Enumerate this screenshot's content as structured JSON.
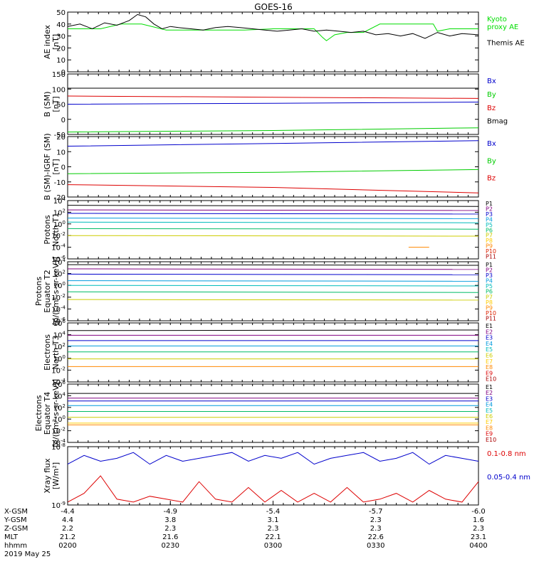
{
  "title": "GOES-16",
  "chart_data": [
    {
      "type": "line",
      "ylabel": "AE index\n[nT]",
      "ylim": [
        0,
        50
      ],
      "yticks": [
        "0",
        "10",
        "20",
        "30",
        "40",
        "50"
      ],
      "legend": [
        {
          "name": "Kyoto\nproxy AE",
          "color": "#00dd00"
        },
        {
          "name": "Themis AE",
          "color": "#000000"
        }
      ],
      "series": [
        {
          "name": "Kyoto proxy AE",
          "color": "#00dd00",
          "x": [
            0,
            0.08,
            0.13,
            0.18,
            0.24,
            0.33,
            0.43,
            0.5,
            0.56,
            0.6,
            0.62,
            0.63,
            0.65,
            0.68,
            0.72,
            0.76,
            0.84,
            0.89,
            0.9,
            0.93,
            1
          ],
          "y": [
            36,
            36,
            40,
            40,
            35,
            35,
            35,
            36,
            36,
            36,
            29,
            26,
            31,
            33,
            33,
            40,
            40,
            40,
            34,
            36,
            36
          ]
        },
        {
          "name": "Themis AE",
          "color": "#000000",
          "x": [
            0,
            0.03,
            0.06,
            0.09,
            0.12,
            0.15,
            0.17,
            0.19,
            0.21,
            0.23,
            0.25,
            0.27,
            0.3,
            0.33,
            0.36,
            0.39,
            0.42,
            0.45,
            0.48,
            0.51,
            0.54,
            0.57,
            0.6,
            0.63,
            0.66,
            0.69,
            0.72,
            0.75,
            0.78,
            0.81,
            0.84,
            0.87,
            0.9,
            0.93,
            0.96,
            1
          ],
          "y": [
            38,
            40,
            36,
            41,
            39,
            43,
            48,
            46,
            40,
            36,
            38,
            37,
            36,
            35,
            37,
            38,
            37,
            36,
            35,
            34,
            35,
            36,
            34,
            35,
            34,
            33,
            34,
            31,
            32,
            30,
            32,
            28,
            33,
            30,
            32,
            31
          ]
        }
      ]
    },
    {
      "type": "line",
      "ylabel": "B (SM)\n[nT]",
      "ylim": [
        -50,
        150
      ],
      "yticks": [
        "-50",
        "0",
        "50",
        "100",
        "150"
      ],
      "legend": [
        {
          "name": "Bx",
          "color": "#0000cc"
        },
        {
          "name": "By",
          "color": "#00cc00"
        },
        {
          "name": "Bz",
          "color": "#dd0000"
        },
        {
          "name": "Bmag",
          "color": "#000000"
        }
      ],
      "series": [
        {
          "name": "Bx",
          "color": "#0000cc",
          "x": [
            0,
            0.5,
            1
          ],
          "y": [
            50,
            53,
            57
          ]
        },
        {
          "name": "By",
          "color": "#00cc00",
          "x": [
            0,
            0.5,
            1
          ],
          "y": [
            -42,
            -37,
            -28
          ]
        },
        {
          "name": "Bz",
          "color": "#dd0000",
          "x": [
            0,
            0.5,
            1
          ],
          "y": [
            77,
            73,
            69
          ]
        },
        {
          "name": "Bmag",
          "color": "#000000",
          "x": [
            0,
            1
          ],
          "y": [
            103,
            103
          ]
        }
      ]
    },
    {
      "type": "line",
      "ylabel": "B (SM)-IGRF (SM)\n[nT]",
      "ylim": [
        -22,
        22
      ],
      "yticks": [
        "-20",
        "-10",
        "0",
        "10",
        "20"
      ],
      "legend": [
        {
          "name": "Bx",
          "color": "#0000cc"
        },
        {
          "name": "By",
          "color": "#00cc00"
        },
        {
          "name": "Bz",
          "color": "#dd0000"
        }
      ],
      "series": [
        {
          "name": "Bx",
          "color": "#0000cc",
          "x": [
            0,
            0.5,
            1
          ],
          "y": [
            15,
            17,
            19
          ]
        },
        {
          "name": "By",
          "color": "#00cc00",
          "x": [
            0,
            0.5,
            1
          ],
          "y": [
            -5,
            -4,
            -2
          ]
        },
        {
          "name": "Bz",
          "color": "#dd0000",
          "x": [
            0,
            0.5,
            1
          ],
          "y": [
            -13,
            -15,
            -19
          ]
        }
      ]
    },
    {
      "type": "line",
      "log": true,
      "ylabel": "Protons\nNorth T1",
      "ylim": [
        -6,
        4
      ],
      "yticks": [
        "10^-6",
        "10^-4",
        "10^-2",
        "10^0",
        "10^2",
        "10^4"
      ],
      "legend": [
        {
          "name": "P1",
          "color": "#000000"
        },
        {
          "name": "P2",
          "color": "#800080"
        },
        {
          "name": "P3",
          "color": "#0000cc"
        },
        {
          "name": "P4",
          "color": "#0099dd"
        },
        {
          "name": "P5",
          "color": "#00bbbb"
        },
        {
          "name": "P6",
          "color": "#00bb66"
        },
        {
          "name": "P7",
          "color": "#cccc00"
        },
        {
          "name": "P8",
          "color": "#ffcc00"
        },
        {
          "name": "P9",
          "color": "#ff8800"
        },
        {
          "name": "P10",
          "color": "#dd2200"
        },
        {
          "name": "P11",
          "color": "#aa0000"
        }
      ],
      "series": [
        {
          "name": "P1",
          "color": "#000000",
          "x": [
            0,
            1
          ],
          "y": [
            3.2,
            3.0
          ]
        },
        {
          "name": "P2",
          "color": "#800080",
          "x": [
            0,
            1
          ],
          "y": [
            2.4,
            2.3
          ]
        },
        {
          "name": "P3",
          "color": "#0000cc",
          "x": [
            0,
            1
          ],
          "y": [
            1.8,
            1.7
          ]
        },
        {
          "name": "P4",
          "color": "#0099dd",
          "x": [
            0,
            1
          ],
          "y": [
            1.0,
            0.9
          ]
        },
        {
          "name": "P5",
          "color": "#00bbbb",
          "x": [
            0,
            1
          ],
          "y": [
            0.3,
            0.2
          ]
        },
        {
          "name": "P6",
          "color": "#00bb66",
          "x": [
            0,
            1
          ],
          "y": [
            -0.8,
            -0.9
          ]
        },
        {
          "name": "P7",
          "color": "#cccc00",
          "x": [
            0,
            1
          ],
          "y": [
            -2.0,
            -2.1
          ]
        },
        {
          "name": "P9",
          "color": "#ff8800",
          "x": [
            0.83,
            0.88
          ],
          "y": [
            -4.0,
            -4.0
          ]
        }
      ]
    },
    {
      "type": "line",
      "log": true,
      "ylabel": "Protons\nEquator T2\n[p/(cm²-s-sr-keV)]",
      "ylim": [
        -6,
        4
      ],
      "yticks": [
        "10^-6",
        "10^-4",
        "10^-2",
        "10^0",
        "10^2",
        "10^4"
      ],
      "legend": [
        {
          "name": "P1",
          "color": "#000000"
        },
        {
          "name": "P2",
          "color": "#800080"
        },
        {
          "name": "P3",
          "color": "#0000cc"
        },
        {
          "name": "P4",
          "color": "#0099dd"
        },
        {
          "name": "P5",
          "color": "#00bbbb"
        },
        {
          "name": "P6",
          "color": "#00bb66"
        },
        {
          "name": "P7",
          "color": "#cccc00"
        },
        {
          "name": "P8",
          "color": "#ffcc00"
        },
        {
          "name": "P9",
          "color": "#ff8800"
        },
        {
          "name": "P10",
          "color": "#dd2200"
        },
        {
          "name": "P11",
          "color": "#aa0000"
        }
      ],
      "series": [
        {
          "name": "P1",
          "color": "#000000",
          "x": [
            0,
            1
          ],
          "y": [
            3.5,
            3.4
          ]
        },
        {
          "name": "P2",
          "color": "#800080",
          "x": [
            0,
            1
          ],
          "y": [
            2.8,
            2.7
          ]
        },
        {
          "name": "P3",
          "color": "#0000cc",
          "x": [
            0,
            1
          ],
          "y": [
            1.9,
            1.8
          ]
        },
        {
          "name": "P4",
          "color": "#0099dd",
          "x": [
            0,
            1
          ],
          "y": [
            0.8,
            0.7
          ]
        },
        {
          "name": "P5",
          "color": "#00bbbb",
          "x": [
            0,
            1
          ],
          "y": [
            0.0,
            -0.1
          ]
        },
        {
          "name": "P6",
          "color": "#00bb66",
          "x": [
            0,
            1
          ],
          "y": [
            -1.1,
            -1.2
          ]
        },
        {
          "name": "P7",
          "color": "#cccc00",
          "x": [
            0,
            1
          ],
          "y": [
            -2.4,
            -2.5
          ]
        }
      ]
    },
    {
      "type": "line",
      "log": true,
      "ylabel": "Electrons\nNorth T3",
      "ylim": [
        -4,
        6
      ],
      "yticks": [
        "10^-4",
        "10^-2",
        "10^0",
        "10^2",
        "10^4",
        "10^6"
      ],
      "legend": [
        {
          "name": "E1",
          "color": "#000000"
        },
        {
          "name": "E2",
          "color": "#800080"
        },
        {
          "name": "E3",
          "color": "#0000cc"
        },
        {
          "name": "E4",
          "color": "#0099dd"
        },
        {
          "name": "E5",
          "color": "#00bbbb"
        },
        {
          "name": "E6",
          "color": "#cccc00"
        },
        {
          "name": "E7",
          "color": "#ffcc00"
        },
        {
          "name": "E8",
          "color": "#ff8800"
        },
        {
          "name": "E9",
          "color": "#dd0000"
        },
        {
          "name": "E10",
          "color": "#aa0000"
        }
      ],
      "series": [
        {
          "name": "E1",
          "color": "#000000",
          "x": [
            0,
            1
          ],
          "y": [
            4.7,
            4.8
          ]
        },
        {
          "name": "E2",
          "color": "#800080",
          "x": [
            0,
            1
          ],
          "y": [
            3.9,
            3.9
          ]
        },
        {
          "name": "E3",
          "color": "#0000cc",
          "x": [
            0,
            1
          ],
          "y": [
            3.0,
            3.0
          ]
        },
        {
          "name": "E4",
          "color": "#0099dd",
          "x": [
            0,
            1
          ],
          "y": [
            2.1,
            2.1
          ]
        },
        {
          "name": "E5",
          "color": "#00bb66",
          "x": [
            0,
            1
          ],
          "y": [
            1.1,
            1.1
          ]
        },
        {
          "name": "E6",
          "color": "#cccc00",
          "x": [
            0,
            1
          ],
          "y": [
            -0.1,
            -0.1
          ]
        },
        {
          "name": "E8",
          "color": "#ff8800",
          "x": [
            0,
            1
          ],
          "y": [
            -1.4,
            -1.4
          ]
        }
      ]
    },
    {
      "type": "line",
      "log": true,
      "ylabel": "Electrons\nEquator T4\n[e/(cm²-s-sr-keV)]",
      "ylim": [
        -4,
        6
      ],
      "yticks": [
        "10^-4",
        "10^-2",
        "10^0",
        "10^2",
        "10^4",
        "10^6"
      ],
      "legend": [
        {
          "name": "E1",
          "color": "#000000"
        },
        {
          "name": "E2",
          "color": "#800080"
        },
        {
          "name": "E3",
          "color": "#0000cc"
        },
        {
          "name": "E4",
          "color": "#0099dd"
        },
        {
          "name": "E5",
          "color": "#00bbbb"
        },
        {
          "name": "E6",
          "color": "#cccc00"
        },
        {
          "name": "E7",
          "color": "#ffcc00"
        },
        {
          "name": "E8",
          "color": "#ff8800"
        },
        {
          "name": "E9",
          "color": "#dd0000"
        },
        {
          "name": "E10",
          "color": "#aa0000"
        }
      ],
      "series": [
        {
          "name": "E1",
          "color": "#000000",
          "x": [
            0,
            1
          ],
          "y": [
            4.4,
            4.4
          ]
        },
        {
          "name": "E2",
          "color": "#800080",
          "x": [
            0,
            1
          ],
          "y": [
            3.6,
            3.6
          ]
        },
        {
          "name": "E3",
          "color": "#0000cc",
          "x": [
            0,
            1
          ],
          "y": [
            3.1,
            3.1
          ]
        },
        {
          "name": "E4",
          "color": "#0099dd",
          "x": [
            0,
            1
          ],
          "y": [
            2.3,
            2.3
          ]
        },
        {
          "name": "E5",
          "color": "#00bb66",
          "x": [
            0,
            1
          ],
          "y": [
            1.3,
            1.3
          ]
        },
        {
          "name": "E6",
          "color": "#cccc00",
          "x": [
            0,
            1
          ],
          "y": [
            0.3,
            0.3
          ]
        },
        {
          "name": "E7",
          "color": "#ffcc00",
          "x": [
            0,
            1
          ],
          "y": [
            -0.7,
            -0.7
          ]
        },
        {
          "name": "E8",
          "color": "#ff8800",
          "x": [
            0,
            1
          ],
          "y": [
            -1.0,
            -1.0
          ]
        }
      ]
    },
    {
      "type": "line",
      "log": true,
      "ylabel": "Xray flux\n[W/m²]",
      "ylim": [
        -9,
        -8
      ],
      "yticks": [
        "10^-9",
        "10^-8"
      ],
      "legend": [
        {
          "name": "0.1-0.8 nm",
          "color": "#dd0000"
        },
        {
          "name": "0.05-0.4 nm",
          "color": "#0000cc"
        }
      ],
      "series": [
        {
          "name": "0.05-0.4 nm",
          "color": "#0000cc",
          "x": [
            0,
            0.04,
            0.08,
            0.12,
            0.16,
            0.2,
            0.24,
            0.28,
            0.32,
            0.36,
            0.4,
            0.44,
            0.48,
            0.52,
            0.56,
            0.6,
            0.64,
            0.68,
            0.72,
            0.76,
            0.8,
            0.84,
            0.88,
            0.92,
            0.96,
            1
          ],
          "y": [
            -8.3,
            -8.15,
            -8.25,
            -8.2,
            -8.1,
            -8.3,
            -8.15,
            -8.25,
            -8.2,
            -8.15,
            -8.1,
            -8.25,
            -8.15,
            -8.2,
            -8.1,
            -8.3,
            -8.2,
            -8.15,
            -8.1,
            -8.25,
            -8.2,
            -8.1,
            -8.3,
            -8.15,
            -8.2,
            -8.25
          ]
        },
        {
          "name": "0.1-0.8 nm",
          "color": "#dd0000",
          "x": [
            0,
            0.04,
            0.08,
            0.12,
            0.16,
            0.2,
            0.24,
            0.28,
            0.32,
            0.36,
            0.4,
            0.44,
            0.48,
            0.52,
            0.56,
            0.6,
            0.64,
            0.68,
            0.72,
            0.76,
            0.8,
            0.84,
            0.88,
            0.92,
            0.96,
            1
          ],
          "y": [
            -8.95,
            -8.8,
            -8.5,
            -8.9,
            -8.95,
            -8.85,
            -8.9,
            -8.95,
            -8.6,
            -8.9,
            -8.95,
            -8.7,
            -8.95,
            -8.75,
            -8.95,
            -8.8,
            -8.95,
            -8.7,
            -8.95,
            -8.9,
            -8.8,
            -8.95,
            -8.75,
            -8.9,
            -8.95,
            -8.6
          ]
        }
      ]
    }
  ],
  "xaxis": {
    "rows": [
      {
        "label": "X-GSM",
        "values": [
          "-4.4",
          "-4.9",
          "-5.4",
          "-5.7",
          "-6.0"
        ]
      },
      {
        "label": "Y-GSM",
        "values": [
          "4.4",
          "3.8",
          "3.1",
          "2.3",
          "1.6"
        ]
      },
      {
        "label": "Z-GSM",
        "values": [
          "2.2",
          "2.3",
          "2.3",
          "2.3",
          "2.3"
        ]
      },
      {
        "label": "MLT",
        "values": [
          "21.2",
          "21.6",
          "22.1",
          "22.6",
          "23.1"
        ]
      },
      {
        "label": "hhmm",
        "values": [
          "0200",
          "0230",
          "0300",
          "0330",
          "0400"
        ]
      }
    ],
    "date": "2019 May 25"
  }
}
